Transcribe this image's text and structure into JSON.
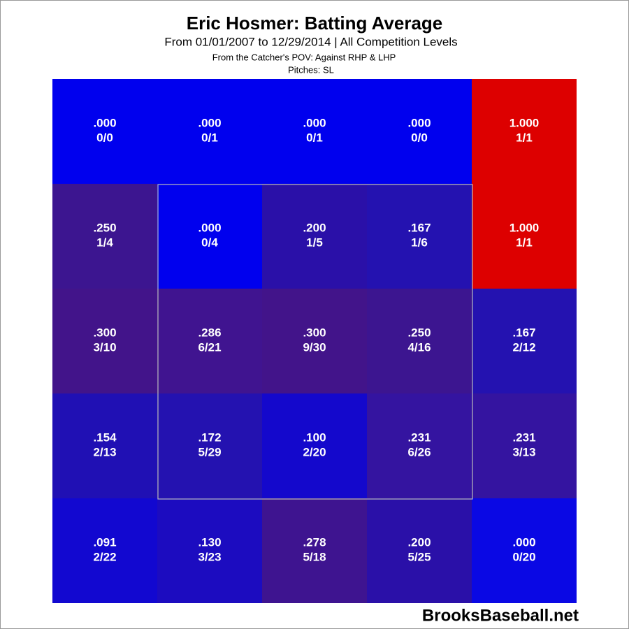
{
  "chart_data": {
    "type": "heatmap",
    "title": "Eric Hosmer: Batting Average",
    "subtitle": "From 01/01/2007 to 12/29/2014 | All Competition Levels",
    "annotations": [
      "From the Catcher's POV:   Against RHP & LHP",
      "Pitches:  SL"
    ],
    "watermark": "BrooksBaseball.net",
    "values": [
      [
        0,
        0,
        0,
        0,
        1
      ],
      [
        0.25,
        0,
        0.2,
        0.167,
        1
      ],
      [
        0.3,
        0.286,
        0.3,
        0.25,
        0.167
      ],
      [
        0.154,
        0.172,
        0.1,
        0.231,
        0.231
      ],
      [
        0.091,
        0.13,
        0.278,
        0.2,
        0
      ]
    ],
    "value_labels": [
      [
        ".000",
        ".000",
        ".000",
        ".000",
        "1.000"
      ],
      [
        ".250",
        ".000",
        ".200",
        ".167",
        "1.000"
      ],
      [
        ".300",
        ".286",
        ".300",
        ".250",
        ".167"
      ],
      [
        ".154",
        ".172",
        ".100",
        ".231",
        ".231"
      ],
      [
        ".091",
        ".130",
        ".278",
        ".200",
        ".000"
      ]
    ],
    "counts": [
      [
        "0/0",
        "0/1",
        "0/1",
        "0/0",
        "1/1"
      ],
      [
        "1/4",
        "0/4",
        "1/5",
        "1/6",
        "1/1"
      ],
      [
        "3/10",
        "6/21",
        "9/30",
        "4/16",
        "2/12"
      ],
      [
        "2/13",
        "5/29",
        "2/20",
        "6/26",
        "3/13"
      ],
      [
        "2/22",
        "3/23",
        "5/18",
        "5/25",
        "0/20"
      ]
    ],
    "colors": [
      [
        "#0000ee",
        "#0000ee",
        "#0000ee",
        "#0000ee",
        "#dd0000"
      ],
      [
        "#3c1590",
        "#0000ee",
        "#2a10a8",
        "#2412b0",
        "#dd0000"
      ],
      [
        "#42148a",
        "#401490",
        "#42148a",
        "#3c1590",
        "#2412b0"
      ],
      [
        "#2010b4",
        "#2412b0",
        "#1408cc",
        "#3414a0",
        "#3414a0"
      ],
      [
        "#1208d0",
        "#1c0cc0",
        "#3e1490",
        "#2a10a8",
        "#0a08e4"
      ]
    ]
  }
}
